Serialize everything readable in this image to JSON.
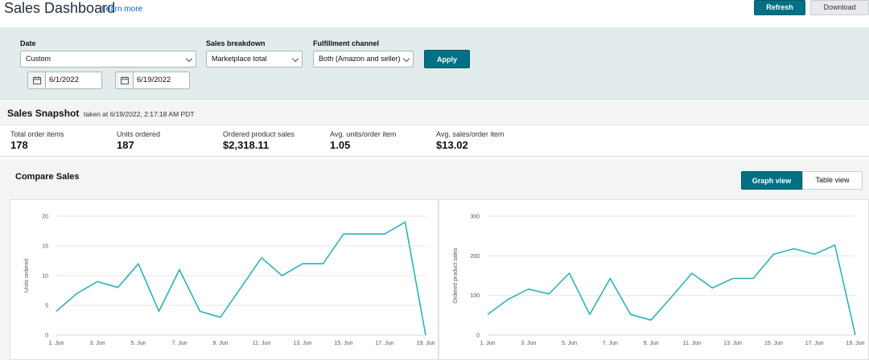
{
  "header": {
    "title": "Sales Dashboard",
    "learn_more": "Learn more",
    "refresh_label": "Refresh",
    "download_label": "Download"
  },
  "filters": {
    "date": {
      "label": "Date",
      "value": "Custom",
      "start": "6/1/2022",
      "end": "6/19/2022"
    },
    "breakdown": {
      "label": "Sales breakdown",
      "value": "Marketplace total"
    },
    "fulfillment": {
      "label": "Fulfillment channel",
      "value": "Both (Amazon and seller)"
    },
    "apply_label": "Apply"
  },
  "snapshot": {
    "title": "Sales Snapshot",
    "taken_at": "taken at 6/19/2022, 2:17:18 AM PDT",
    "metrics": [
      {
        "label": "Total order items",
        "value": "178"
      },
      {
        "label": "Units ordered",
        "value": "187"
      },
      {
        "label": "Ordered product sales",
        "value": "$2,318.11"
      },
      {
        "label": "Avg. units/order item",
        "value": "1.05"
      },
      {
        "label": "Avg. sales/order item",
        "value": "$13.02"
      }
    ]
  },
  "compare": {
    "title": "Compare Sales",
    "graph_view_label": "Graph view",
    "table_view_label": "Table view"
  },
  "colors": {
    "accent": "#007185",
    "line": "#2bb3b8"
  },
  "chart_data": [
    {
      "type": "line",
      "ylabel": "Units ordered",
      "ylim": [
        0,
        20
      ],
      "yticks": [
        0,
        5,
        10,
        15,
        20
      ],
      "xtick_labels": [
        "1. Jun",
        "3. Jun",
        "5. Jun",
        "7. Jun",
        "9. Jun",
        "11. Jun",
        "13. Jun",
        "15. Jun",
        "17. Jun",
        "19. Jun"
      ],
      "x": [
        1,
        2,
        3,
        4,
        5,
        6,
        7,
        8,
        9,
        10,
        11,
        12,
        13,
        14,
        15,
        16,
        17,
        18,
        19
      ],
      "values": [
        4,
        7,
        9,
        8,
        12,
        4,
        11,
        4,
        3,
        8,
        13,
        10,
        12,
        12,
        17,
        17,
        17,
        19,
        0
      ]
    },
    {
      "type": "line",
      "ylabel": "Ordered product sales",
      "ylim": [
        0,
        300
      ],
      "yticks": [
        0,
        100,
        200,
        300
      ],
      "xtick_labels": [
        "1. Jun",
        "3. Jun",
        "5. Jun",
        "7. Jun",
        "9. Jun",
        "11. Jun",
        "13. Jun",
        "15. Jun",
        "17. Jun",
        "19. Jun"
      ],
      "x": [
        1,
        2,
        3,
        4,
        5,
        6,
        7,
        8,
        9,
        10,
        11,
        12,
        13,
        14,
        15,
        16,
        17,
        18,
        19
      ],
      "values": [
        52,
        90,
        116,
        104,
        156,
        52,
        143,
        52,
        38,
        96,
        156,
        119,
        143,
        143,
        204,
        218,
        204,
        227,
        0
      ]
    }
  ]
}
